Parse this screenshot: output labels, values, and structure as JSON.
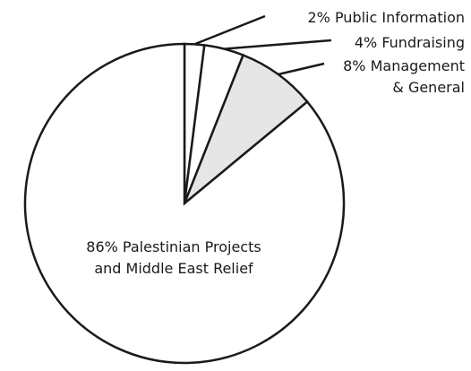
{
  "chart_data": {
    "type": "pie",
    "title": "",
    "slices": [
      {
        "label": "Public Information",
        "value": 2,
        "value_label": "2%",
        "fill": "#ffffff"
      },
      {
        "label": "Fundraising",
        "value": 4,
        "value_label": "4%",
        "fill": "#ffffff"
      },
      {
        "label": "Management & General",
        "value": 8,
        "value_label": "8%",
        "fill": "#e6e6e6"
      },
      {
        "label": "Palestinian Projects and Middle East Relief",
        "value": 86,
        "value_label": "86%",
        "fill": "#ffffff"
      }
    ],
    "label_text": {
      "public_information": "2% Public Information",
      "fundraising": "4% Fundraising",
      "management_line1": "8% Management",
      "management_line2": "& General",
      "projects_line1": "86% Palestinian Projects",
      "projects_line2": "and Middle East Relief"
    },
    "start_angle_deg": 0,
    "direction": "clockwise",
    "colors": {
      "stroke": "#1a1a1a",
      "background": "#ffffff"
    }
  }
}
